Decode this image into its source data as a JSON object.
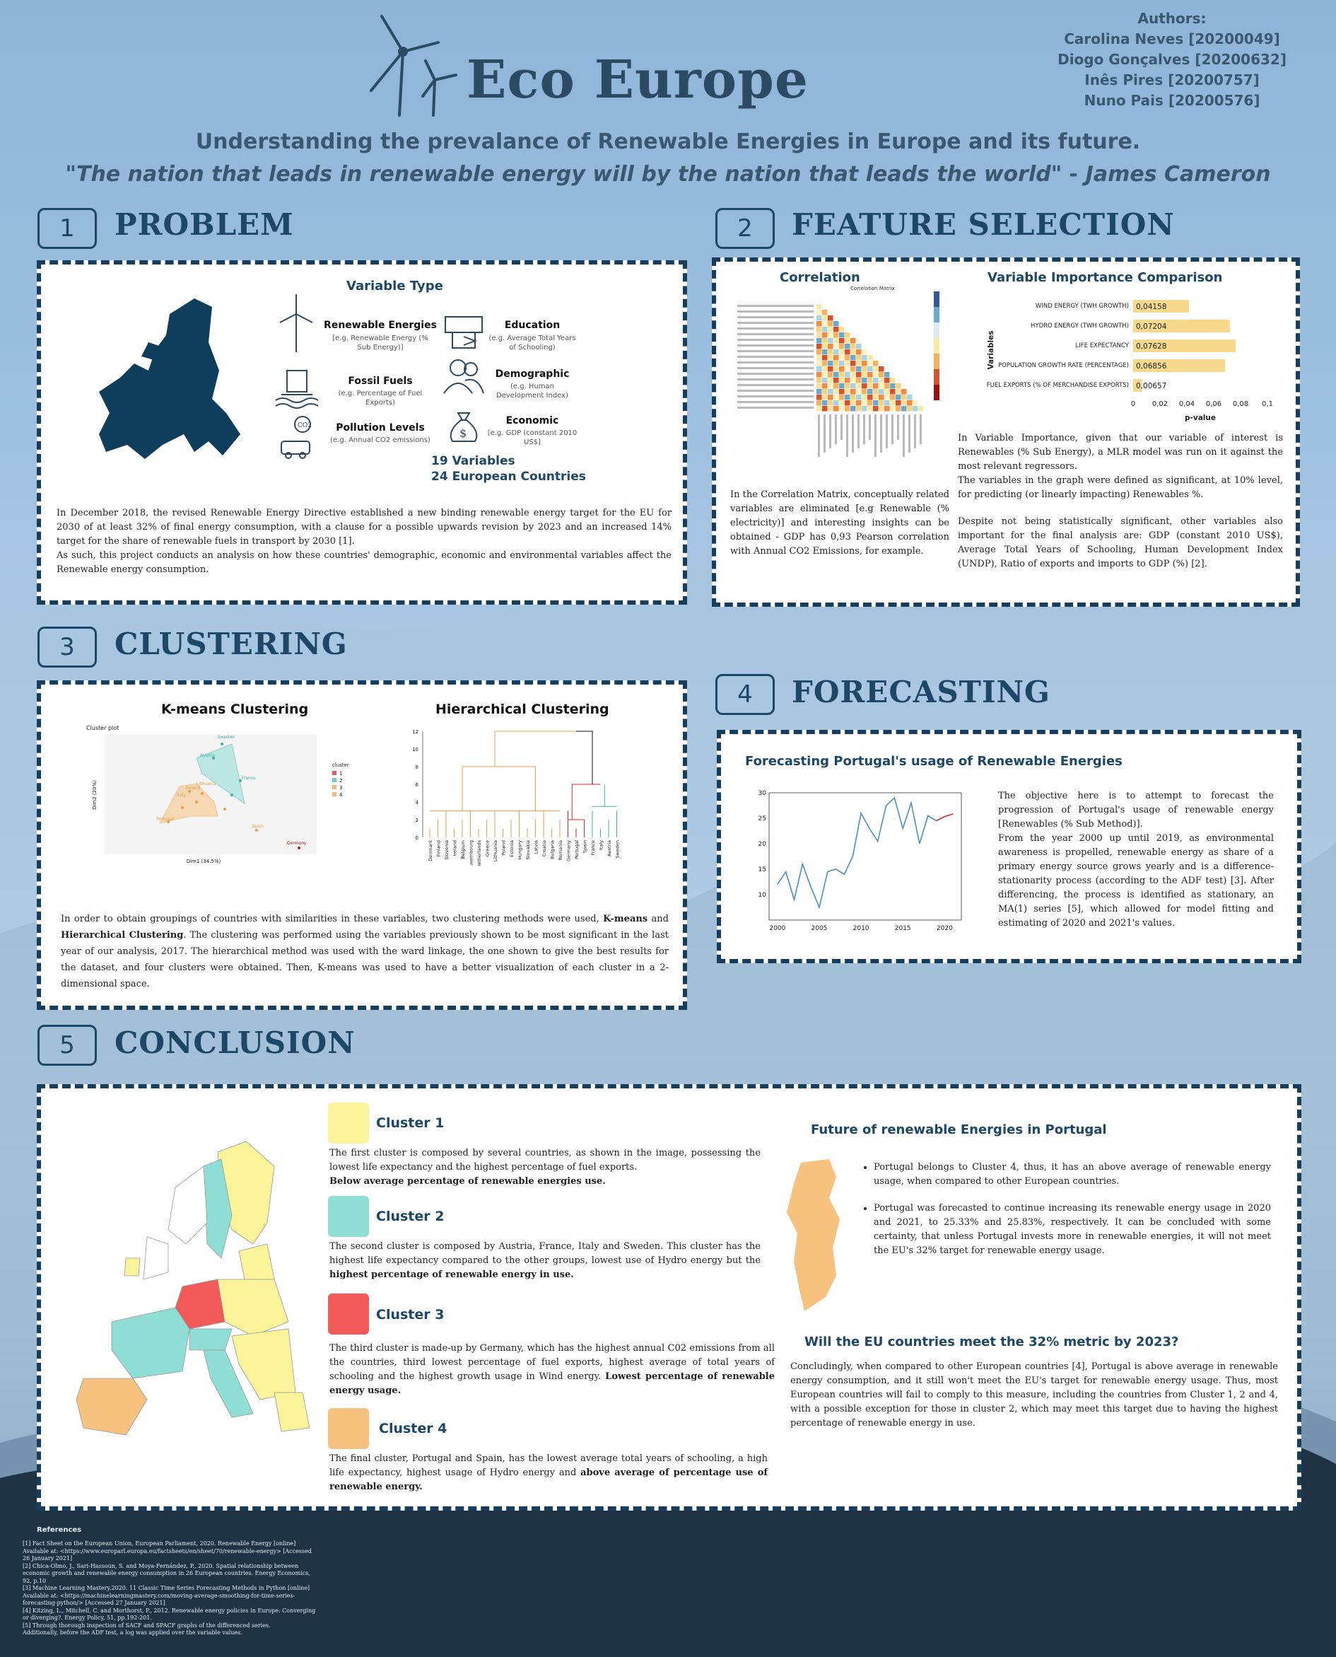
{
  "header": {
    "title": "Eco Europe",
    "subtitle": "Understanding the prevalance of Renewable Energies in Europe and its future.",
    "quote": "\"The nation that leads in renewable energy will by the nation that leads the world\" - James Cameron",
    "authors_label": "Authors:",
    "authors": [
      "Carolina Neves [20200049]",
      "Diogo Gonçalves [20200632]",
      "Inês Pires [20200757]",
      "Nuno Pais [20200576]"
    ]
  },
  "sections": {
    "s1": {
      "num": "1",
      "title": "PROBLEM"
    },
    "s2": {
      "num": "2",
      "title": "FEATURE SELECTION"
    },
    "s3": {
      "num": "3",
      "title": "CLUSTERING"
    },
    "s4": {
      "num": "4",
      "title": "FORECASTING"
    },
    "s5": {
      "num": "5",
      "title": "CONCLUSION"
    }
  },
  "problem": {
    "variable_type_title": "Variable Type",
    "types": [
      {
        "label": "Renewable Energies",
        "desc": "[e.g. Renewable Energy (% Sub Energy)]"
      },
      {
        "label": "Fossil Fuels",
        "desc": "(e.g. Percentage of Fuel Exports)"
      },
      {
        "label": "Pollution Levels",
        "desc": "(e.g. Annual CO2 emissions)"
      },
      {
        "label": "Education",
        "desc": "(e.g. Average Total Years of Schooling)"
      },
      {
        "label": "Demographic",
        "desc": "(e.g. Human Development Index)"
      },
      {
        "label": "Economic",
        "desc": "[e.g. GDP (constant 2010 US$]"
      }
    ],
    "count_variables": "19  Variables",
    "count_countries": "24 European Countries",
    "text": "In December 2018, the revised Renewable Energy Directive established a new binding renewable energy target for the EU for 2030 of at least 32% of final energy consumption, with a clause for a possible upwards revision by 2023 and an increased 14% target for the share of renewable fuels in transport by 2030 [1].",
    "text2": " As such, this project conducts an analysis on how these countries' demographic, economic and environmental variables affect the Renewable energy consumption."
  },
  "features": {
    "corr_title": "Correlation",
    "corr_matrix_title": "Correlation Matrix",
    "corr_text": "In the Correlation Matrix, conceptually related variables are eliminated [e.g Renewable (% electricity)] and interesting insights can be obtained - GDP has 0,93 Pearson correlation with Annual CO2 Emissions, for example.",
    "imp_title": "Variable Importance Comparison",
    "imp_text1": "In Variable Importance, given that our variable of interest is Renewables (% Sub Energy), a MLR model was run on it against the most relevant regressors.",
    "imp_text2": "The variables in the graph were defined as significant, at 10% level, for predicting (or linearly impacting) Renewables %.",
    "imp_text3": "Despite not being statistically significant, other variables also important for the final analysis are: GDP (constant 2010 US$), Average Total Years of Schooling, Human Development Index (UNDP), Ratio of exports and imports to GDP (%) [2]."
  },
  "chart_data": [
    {
      "type": "bar",
      "orientation": "horizontal",
      "categories": [
        "WIND ENERGY (TWH GROWTH)",
        "HYDRO ENERGY (TWH GROWTH)",
        "LIFE EXPECTANCY",
        "POPULATION GROWTH RATE (PERCENTAGE)",
        "FUEL EXPORTS (% OF MERCHANDISE EXPORTS)"
      ],
      "values": [
        0.04158,
        0.07204,
        0.07628,
        0.06856,
        0.00657
      ],
      "data_labels": [
        "0,04158",
        "0,07204",
        "0,07628",
        "0,06856",
        "0,00657"
      ],
      "xlabel": "p-value",
      "ylabel": "Variables",
      "xlim": [
        0,
        0.1
      ],
      "xticks": [
        "0",
        "0,02",
        "0,04",
        "0,06",
        "0,08",
        "0,1"
      ],
      "color": "#f7d98e"
    },
    {
      "type": "line",
      "title": "Forecasting Portugal's usage of Renewable Energies",
      "x": [
        2000,
        2001,
        2002,
        2003,
        2004,
        2005,
        2006,
        2007,
        2008,
        2009,
        2010,
        2011,
        2012,
        2013,
        2014,
        2015,
        2016,
        2017,
        2018,
        2019
      ],
      "y": [
        12,
        14.5,
        9,
        16,
        11.5,
        7.5,
        14.5,
        15,
        14,
        17.5,
        26,
        23,
        20.5,
        27.5,
        29,
        23,
        28,
        20,
        25.5,
        24.5
      ],
      "forecast_x": [
        2019,
        2020,
        2021
      ],
      "forecast_y": [
        24.5,
        25.33,
        25.83
      ],
      "xlim": [
        1999,
        2022
      ],
      "ylim": [
        5,
        30
      ],
      "xticks": [
        "2000",
        "2005",
        "2010",
        "2015",
        "2020"
      ],
      "yticks": [
        "10",
        "15",
        "20",
        "25",
        "30"
      ],
      "colors": {
        "history": "#4a8fc4",
        "forecast": "#d62a2a"
      }
    }
  ],
  "clustering": {
    "kmeans_title": "K-means Clustering",
    "hier_title": "Hierarchical Clustering",
    "cluster_plot_label": "Cluster plot",
    "kmeans_xlabel": "Dim1 (34.5%)",
    "kmeans_ylabel": "Dim2 (20%)",
    "legend_title": "cluster",
    "legend": [
      "1",
      "2",
      "3",
      "4"
    ],
    "point_labels": [
      "Sweden",
      "Austria",
      "France",
      "Italy",
      "Finland",
      "Portugal",
      "Spain",
      "Germany",
      "Lithuania"
    ],
    "dendro_yticks": [
      "0",
      "2",
      "4",
      "6",
      "8",
      "10",
      "12"
    ],
    "dendro_leaves": [
      "Denmark",
      "Finland",
      "Slovenia",
      "Ireland",
      "Belgium",
      "Luxembourg",
      "Netherlands",
      "Greece",
      "Lithuania",
      "Poland",
      "Estonia",
      "Hungary",
      "Slovakia",
      "Latvia",
      "Croatia",
      "Bulgaria",
      "Romania",
      "Germany",
      "Portugal",
      "Spain",
      "France",
      "Italy",
      "Austria",
      "Sweden"
    ],
    "text_pre": "In order to obtain groupings of countries with similarities in these variables, two clustering methods were used, ",
    "text_b1": "K-means",
    "text_mid": " and ",
    "text_b2": "Hierarchical Clustering",
    "text_post": ". The clustering was performed using the variables previously shown to be most significant in the last year of our analysis, 2017. The hierarchical method was used with the ward linkage, the one shown to give the best results for the dataset, and four clusters were obtained. Then, K-means was used to have a better visualization of each cluster in a 2-dimensional space."
  },
  "forecasting": {
    "chart_title": "Forecasting Portugal's usage of Renewable Energies",
    "text1": "The objective here is to attempt to forecast the progression of Portugal's usage of renewable energy [Renewables (% Sub Method)].",
    "text2": "From the year 2000 up until 2019, as environmental awareness is propelled, renewable energy as share of a primary energy source grows yearly and is a difference-stationarity process (according to the ADF test) [3]. After differencing, the process is identified as stationary, an MA(1) series [5], which allowed for model fitting and estimating of 2020 and 2021's values."
  },
  "conclusion": {
    "clusters": [
      {
        "title": "Cluster 1",
        "color": "#faf39a",
        "text": "The first cluster is composed by several countries, as shown in the image, possessing the lowest life expectancy and the highest percentage of fuel exports.",
        "bold": "Below average percentage of renewable energies use."
      },
      {
        "title": "Cluster 2",
        "color": "#8fded6",
        "text": "The second cluster is composed by Austria, France, Italy and Sweden. This cluster has the highest life expectancy compared to the other groups, lowest use of Hydro energy but the ",
        "bold": "highest percentage of renewable energy in use."
      },
      {
        "title": "Cluster 3",
        "color": "#f25a5a",
        "text": "The third cluster is made-up by Germany, which has the highest annual C02 emissions from all the countries, third lowest percentage of fuel exports, highest average of total years of schooling and the highest growth usage in Wind energy. ",
        "bold": "Lowest percentage of renewable energy usage."
      },
      {
        "title": "Cluster 4",
        "color": "#f7c27f",
        "text": "The final cluster, Portugal and Spain, has the lowest average total years of schooling, a high life expectancy, highest usage of Hydro energy and ",
        "bold": "above average of percentage use of renewable energy."
      }
    ],
    "future_title": "Future of renewable Energies in Portugal",
    "bullets": [
      "Portugal belongs to Cluster 4, thus, it has an above average of renewable energy usage, when compared to other European countries.",
      "Portugal was forecasted to continue increasing its renewable energy usage in 2020 and 2021, to 25.33% and 25.83%, respectively. It can be concluded with some certainty, that unless Portugal invests more in renewable energies,  it will not meet the EU's 32% target for renewable energy usage."
    ],
    "question": "Will the EU countries meet the 32% metric by 2023?",
    "final_text": "Concludingly, when compared to other European countries [4], Portugal is above average in renewable energy consumption, and it still won't meet the EU's target for renewable energy usage. Thus, most European countries will fail to comply to this measure, including the countries from Cluster 1, 2 and 4, with a possible exception for those in cluster 2, which may meet this target due to having the highest percentage of renewable energy in use."
  },
  "references": {
    "title": "References",
    "items": [
      "[1] Fact Sheet on the European Union, European Parliament, 2020. Renewable Energy [online] Available at: <https://www.europarl.europa.eu/factsheets/en/sheet/70/renewable-energy> [Accessed 26 January 2021]",
      "[2] Chica-Olmo, J., Sari-Hassoun, S. and Moya-Fernández, P., 2020. Spatial relationship between economic growth and renewable energy consumption in 26 European countries. Energy Economics, 92, p.10",
      "[3] Machine Learning Mastery.2020. 11 Classic Time Series Forecasting Methods in Python [online] Available at: <https://machinelearningmastery.com/moving-average-smoothing-for-time-series-forecasting-python/> [Accessed 27 January 2021]",
      "[4] Kitzing, L., Mitchell, C. and Morthorst, P., 2012. Renewable energy policies in Europe: Converging or diverging?. Energy Policy, 51, pp.192-201.",
      "[5] Through thorough inspection of SACF and SPACF graphs of the differenced series.",
      "Additionally, before the ADF test, a log was applied over the variable values."
    ]
  }
}
